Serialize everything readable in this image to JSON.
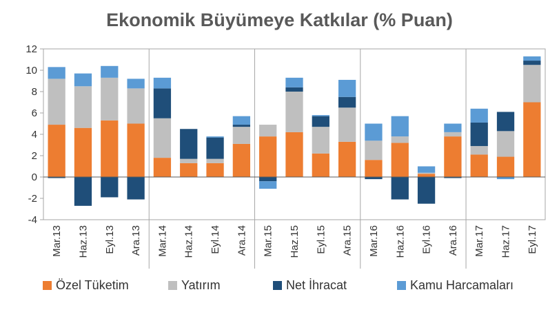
{
  "chart_data": {
    "type": "bar",
    "stacked": true,
    "title": "Ekonomik Büyümeye Katkılar (% Puan)",
    "xlabel": "",
    "ylabel": "",
    "ylim": [
      -4,
      12
    ],
    "yticks": [
      -4,
      -2,
      0,
      2,
      4,
      6,
      8,
      10,
      12
    ],
    "grid": false,
    "legend_position": "bottom",
    "categories": [
      "Mar.13",
      "Haz.13",
      "Eyl.13",
      "Ara.13",
      "Mar.14",
      "Haz.14",
      "Eyl.14",
      "Ara.14",
      "Mar.15",
      "Haz.15",
      "Eyl.15",
      "Ara.15",
      "Mar.16",
      "Haz.16",
      "Eyl.16",
      "Ara.16",
      "Mar.17",
      "Haz.17",
      "Eyl.17"
    ],
    "series": [
      {
        "name": "Özel Tüketim",
        "color": "#ED7D31",
        "values": [
          4.9,
          4.6,
          5.3,
          5.0,
          1.8,
          1.3,
          1.3,
          3.1,
          3.8,
          4.2,
          2.2,
          3.3,
          1.6,
          3.2,
          0.3,
          3.8,
          2.1,
          1.9,
          7.0
        ]
      },
      {
        "name": "Yatırım",
        "color": "#BFBFBF",
        "values": [
          4.3,
          3.9,
          4.0,
          3.3,
          3.7,
          0.4,
          0.4,
          1.6,
          1.1,
          3.8,
          2.5,
          3.2,
          1.8,
          0.6,
          0.1,
          0.4,
          0.8,
          2.4,
          3.5
        ]
      },
      {
        "name": "Net İhracat",
        "color": "#1F4E79",
        "values": [
          -0.1,
          -2.7,
          -1.9,
          -2.1,
          2.8,
          2.8,
          2.0,
          0.2,
          -0.4,
          0.4,
          1.0,
          1.0,
          -0.2,
          -2.1,
          -2.5,
          -0.1,
          2.2,
          1.8,
          0.4
        ]
      },
      {
        "name": "Kamu Harcamaları",
        "color": "#5B9BD5",
        "values": [
          1.1,
          1.2,
          1.1,
          0.9,
          1.0,
          0.0,
          0.1,
          0.8,
          -0.7,
          0.9,
          0.1,
          1.6,
          1.6,
          1.9,
          0.6,
          0.8,
          1.3,
          -0.2,
          0.4
        ]
      }
    ]
  }
}
